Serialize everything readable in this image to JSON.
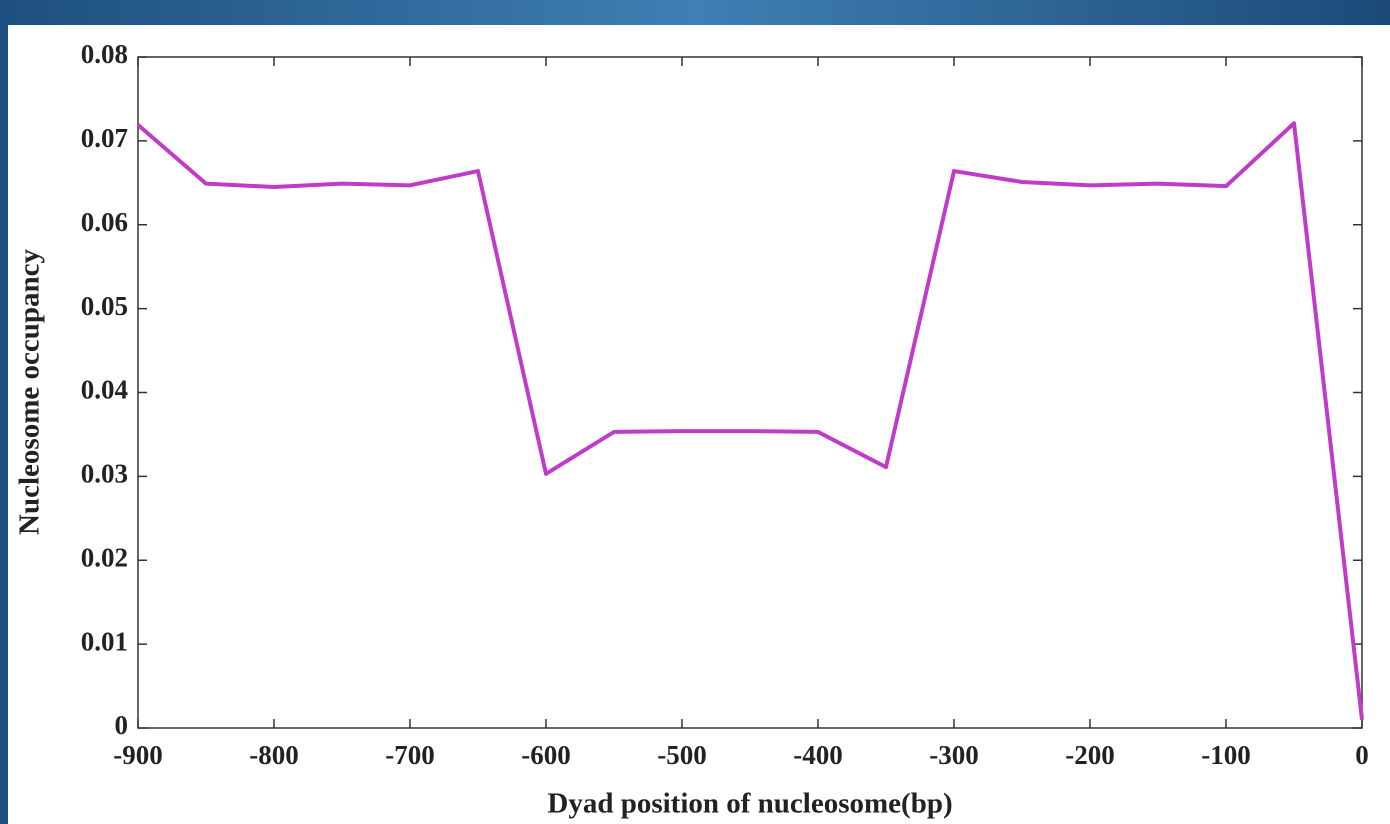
{
  "chart_data": {
    "type": "line",
    "xlabel": "Dyad position of nucleosome(bp)",
    "ylabel": "Nucleosome occupancy",
    "x": [
      -900,
      -850,
      -800,
      -750,
      -700,
      -650,
      -600,
      -550,
      -500,
      -450,
      -400,
      -350,
      -300,
      -250,
      -200,
      -150,
      -100,
      -50,
      0
    ],
    "series": [
      {
        "color": "#c03cc8",
        "values": [
          0.0719,
          0.0649,
          0.0645,
          0.0649,
          0.0647,
          0.0664,
          0.0303,
          0.0353,
          0.0354,
          0.0354,
          0.0353,
          0.0311,
          0.0664,
          0.0651,
          0.0647,
          0.0649,
          0.0646,
          0.0721,
          0.001
        ]
      }
    ],
    "xlim": [
      -900,
      0
    ],
    "xticks": [
      -900,
      -800,
      -700,
      -600,
      -500,
      -400,
      -300,
      -200,
      -100,
      0
    ],
    "ylim": [
      0,
      0.08
    ],
    "yticks": [
      0,
      0.01,
      0.02,
      0.03,
      0.04,
      0.05,
      0.06,
      0.07,
      0.08
    ],
    "grid": false
  }
}
